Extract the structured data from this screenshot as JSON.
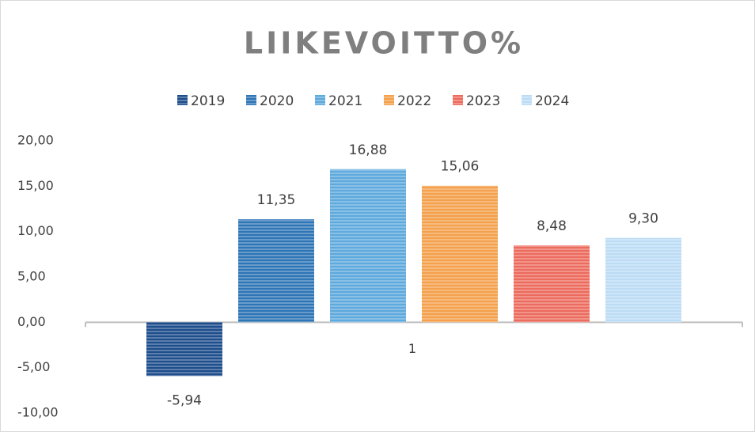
{
  "chart_data": {
    "type": "bar",
    "title": "LIIKEVOITTO%",
    "categories": [
      "1"
    ],
    "series": [
      {
        "name": "2019",
        "color": "#1f4e8c",
        "values": [
          -5.94
        ],
        "value_labels": [
          "-5,94"
        ]
      },
      {
        "name": "2020",
        "color": "#2e75b6",
        "values": [
          11.35
        ],
        "value_labels": [
          "11,35"
        ]
      },
      {
        "name": "2021",
        "color": "#5ea9dd",
        "values": [
          16.88
        ],
        "value_labels": [
          "16,88"
        ]
      },
      {
        "name": "2022",
        "color": "#f4a04c",
        "values": [
          15.06
        ],
        "value_labels": [
          "15,06"
        ]
      },
      {
        "name": "2023",
        "color": "#ec6b5e",
        "values": [
          8.48
        ],
        "value_labels": [
          "8,48"
        ]
      },
      {
        "name": "2024",
        "color": "#bcdcf5",
        "values": [
          9.3
        ],
        "value_labels": [
          "9,30"
        ]
      }
    ],
    "ylim": [
      -10,
      20
    ],
    "yticks": [
      {
        "value": -10,
        "label": "-10,00"
      },
      {
        "value": -5,
        "label": "-5,00"
      },
      {
        "value": 0,
        "label": "0,00"
      },
      {
        "value": 5,
        "label": "5,00"
      },
      {
        "value": 10,
        "label": "10,00"
      },
      {
        "value": 15,
        "label": "15,00"
      },
      {
        "value": 20,
        "label": "20,00"
      }
    ],
    "legend": "top"
  }
}
